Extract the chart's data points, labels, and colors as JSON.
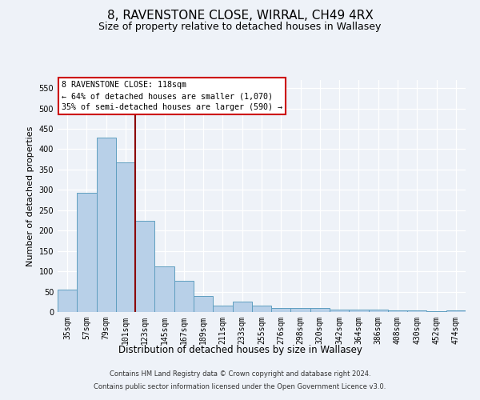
{
  "title": "8, RAVENSTONE CLOSE, WIRRAL, CH49 4RX",
  "subtitle": "Size of property relative to detached houses in Wallasey",
  "xlabel": "Distribution of detached houses by size in Wallasey",
  "ylabel": "Number of detached properties",
  "categories": [
    "35sqm",
    "57sqm",
    "79sqm",
    "101sqm",
    "123sqm",
    "145sqm",
    "167sqm",
    "189sqm",
    "211sqm",
    "233sqm",
    "255sqm",
    "276sqm",
    "298sqm",
    "320sqm",
    "342sqm",
    "364sqm",
    "386sqm",
    "408sqm",
    "430sqm",
    "452sqm",
    "474sqm"
  ],
  "values": [
    55,
    292,
    428,
    367,
    225,
    113,
    76,
    39,
    16,
    26,
    15,
    10,
    9,
    9,
    6,
    5,
    5,
    4,
    4,
    1,
    4
  ],
  "bar_color": "#b8d0e8",
  "bar_edge_color": "#5f9ec0",
  "vline_idx": 4,
  "vline_color": "#8b0000",
  "annotation_text": "8 RAVENSTONE CLOSE: 118sqm\n← 64% of detached houses are smaller (1,070)\n35% of semi-detached houses are larger (590) →",
  "annotation_box_color": "#ffffff",
  "annotation_box_edge": "#cc0000",
  "ylim": [
    0,
    570
  ],
  "yticks": [
    0,
    50,
    100,
    150,
    200,
    250,
    300,
    350,
    400,
    450,
    500,
    550
  ],
  "footer1": "Contains HM Land Registry data © Crown copyright and database right 2024.",
  "footer2": "Contains public sector information licensed under the Open Government Licence v3.0.",
  "bg_color": "#eef2f8",
  "grid_color": "#ffffff",
  "title_fontsize": 11,
  "subtitle_fontsize": 9,
  "tick_fontsize": 7,
  "ylabel_fontsize": 8,
  "xlabel_fontsize": 8.5
}
